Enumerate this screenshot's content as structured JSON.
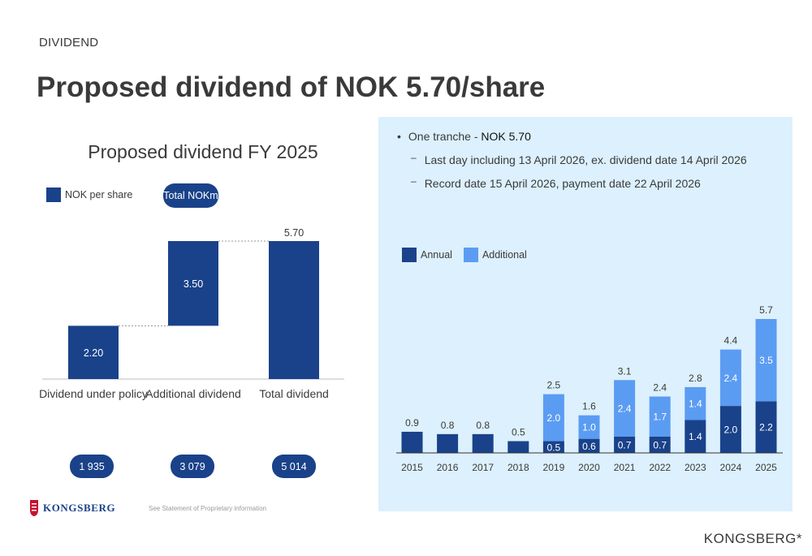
{
  "header": {
    "section_label": "DIVIDEND",
    "title": "Proposed dividend of NOK 5.70/share"
  },
  "left_chart": {
    "title": "Proposed dividend FY 2025",
    "legend_nok_per_share": "NOK per share",
    "legend_total_nokm": "Total NOKm",
    "nokm_values": [
      "1 935",
      "3 079",
      "5 014"
    ]
  },
  "info": {
    "bullet_prefix": "One tranche - ",
    "bullet_value": "NOK 5.70",
    "sub_items": [
      "Last day including 13 April 2026, ex. dividend date 14 April 2026",
      "Record date 15 April 2026, payment date 22 April 2026"
    ]
  },
  "right_chart": {
    "legend_annual": "Annual",
    "legend_additional": "Additional"
  },
  "footer": {
    "logo_text": "KONGSBERG",
    "disclaimer": "See Statement of Proprietary information",
    "brand": "KONGSBERG*"
  },
  "colors": {
    "dark_blue": "#1a428a",
    "light_blue": "#5b9cf3",
    "panel_bg": "#dcf0fd"
  },
  "chart_data": [
    {
      "type": "bar",
      "title": "Proposed dividend FY 2025",
      "categories": [
        "Dividend under policy",
        "Additional dividend",
        "Total dividend"
      ],
      "values": [
        2.2,
        3.5,
        5.7
      ],
      "labels": [
        "2.20",
        "3.50",
        "5.70"
      ],
      "bases": [
        0,
        2.2,
        0
      ],
      "ylim": [
        0,
        5.7
      ]
    },
    {
      "type": "bar",
      "categories": [
        "2015",
        "2016",
        "2017",
        "2018",
        "2019",
        "2020",
        "2021",
        "2022",
        "2023",
        "2024",
        "2025"
      ],
      "series": [
        {
          "name": "Annual",
          "values": [
            0.9,
            0.8,
            0.8,
            0.5,
            0.5,
            0.6,
            0.7,
            0.7,
            1.4,
            2.0,
            2.2
          ],
          "labels": [
            "",
            "",
            "",
            "",
            "0.5",
            "0.6",
            "0.7",
            "0.7",
            "1.4",
            "2.0",
            "2.2"
          ]
        },
        {
          "name": "Additional",
          "values": [
            0,
            0,
            0,
            0,
            2.0,
            1.0,
            2.4,
            1.7,
            1.4,
            2.4,
            3.5
          ],
          "labels": [
            "",
            "",
            "",
            "",
            "2.0",
            "1.0",
            "2.4",
            "1.7",
            "1.4",
            "2.4",
            "3.5"
          ]
        }
      ],
      "totals": [
        "0.9",
        "0.8",
        "0.8",
        "0.5",
        "2.5",
        "1.6",
        "3.1",
        "2.4",
        "2.8",
        "4.4",
        "5.7"
      ],
      "ylim": [
        0,
        5.7
      ]
    }
  ]
}
